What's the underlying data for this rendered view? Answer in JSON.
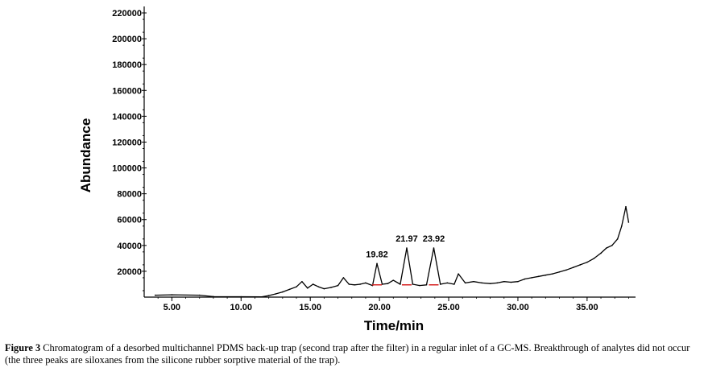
{
  "chart_data": {
    "type": "line",
    "title": "",
    "xlabel": "Time/min",
    "ylabel": "Abundance",
    "xlim": [
      3.0,
      38.5
    ],
    "ylim": [
      0,
      225000
    ],
    "xticks": [
      "5.00",
      "10.00",
      "15.00",
      "20.00",
      "25.00",
      "30.00",
      "35.00"
    ],
    "xtick_values": [
      5,
      10,
      15,
      20,
      25,
      30,
      35
    ],
    "yticks": [
      "20000",
      "40000",
      "60000",
      "80000",
      "100000",
      "120000",
      "140000",
      "160000",
      "180000",
      "200000",
      "220000"
    ],
    "ytick_values": [
      20000,
      40000,
      60000,
      80000,
      100000,
      120000,
      140000,
      160000,
      180000,
      200000,
      220000
    ],
    "grid": false,
    "line_color": "#000000",
    "marker_color": "#d62020",
    "series": [
      {
        "x": [
          3.8,
          5.0,
          7.0,
          8.0,
          10.0,
          11.5,
          12.0,
          12.5,
          13.0,
          13.5,
          14.0,
          14.4,
          14.8,
          15.2,
          15.6,
          16.0,
          16.5,
          17.0,
          17.4,
          17.8,
          18.2,
          18.6,
          19.0,
          19.5,
          19.82,
          20.2,
          20.6,
          21.0,
          21.5,
          21.97,
          22.4,
          22.9,
          23.4,
          23.92,
          24.4,
          24.9,
          25.4,
          25.7,
          26.2,
          26.8,
          27.4,
          28.0,
          28.5,
          29.0,
          29.5,
          30.0,
          30.5,
          31.0,
          31.5,
          32.0,
          32.5,
          33.0,
          33.5,
          34.0,
          34.5,
          35.0,
          35.5,
          36.0,
          36.4,
          36.8,
          37.2,
          37.5,
          37.8,
          38.0
        ],
        "y": [
          1500,
          1800,
          1500,
          400,
          300,
          200,
          1200,
          2500,
          4000,
          6000,
          8000,
          12000,
          7000,
          10000,
          8000,
          6500,
          7500,
          9000,
          15000,
          10000,
          9500,
          10000,
          11000,
          9000,
          26000,
          10000,
          10500,
          13000,
          10000,
          38000,
          10000,
          9000,
          9500,
          38000,
          10000,
          11000,
          10000,
          18000,
          11000,
          12000,
          11000,
          10500,
          11000,
          12000,
          11500,
          12000,
          14000,
          15000,
          16000,
          17000,
          18000,
          19500,
          21000,
          23000,
          25000,
          27000,
          30000,
          34000,
          38000,
          40000,
          45000,
          55000,
          70000,
          58000
        ]
      }
    ],
    "peak_labels": [
      {
        "x": 19.82,
        "y": 26000,
        "text": "19.82"
      },
      {
        "x": 21.97,
        "y": 38000,
        "text": "21.97"
      },
      {
        "x": 23.92,
        "y": 38000,
        "text": "23.92"
      }
    ],
    "red_markers_x": [
      19.82,
      21.97,
      23.92
    ]
  },
  "caption": {
    "label": "Figure 3",
    "text": " Chromatogram of a desorbed multichannel PDMS back-up trap (second trap after the filter) in a regular inlet of a GC-MS. Breakthrough of analytes did not occur (the three peaks are siloxanes from the silicone rubber sorptive material of the trap)."
  }
}
